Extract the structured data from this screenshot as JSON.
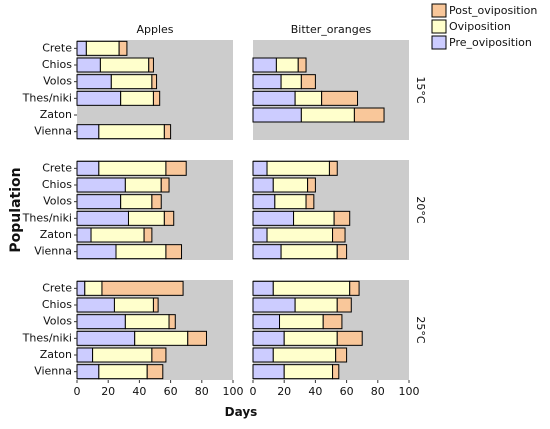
{
  "chart_data": {
    "type": "bar",
    "orientation": "horizontal",
    "stacked": true,
    "xlabel": "Days",
    "ylabel": "Population",
    "xlim": [
      0,
      100
    ],
    "xticks": [
      "0",
      "20",
      "40",
      "60",
      "80",
      "100"
    ],
    "grid": false,
    "legend_position": "top-right",
    "hosts": [
      "Apples",
      "Bitter_oranges"
    ],
    "temperatures": [
      "15°C",
      "20°C",
      "25°C"
    ],
    "populations": [
      "Crete",
      "Chios",
      "Volos",
      "Thes/niki",
      "Zaton",
      "Vienna"
    ],
    "series": [
      {
        "name": "Post_oviposition",
        "color": "#f9c79a"
      },
      {
        "name": "Oviposition",
        "color": "#ffffcc"
      },
      {
        "name": "Pre_oviposition",
        "color": "#ccccff"
      }
    ],
    "panels": [
      {
        "host": "Apples",
        "temperature": "15°C",
        "pre": [
          6,
          15,
          22,
          28,
          null,
          14
        ],
        "ovi": [
          21,
          31,
          26,
          21,
          null,
          42
        ],
        "post": [
          5,
          3,
          3,
          4,
          null,
          4
        ]
      },
      {
        "host": "Bitter_oranges",
        "temperature": "15°C",
        "pre": [
          null,
          15,
          18,
          27,
          31,
          null
        ],
        "ovi": [
          null,
          14,
          13,
          17,
          34,
          null
        ],
        "post": [
          null,
          5,
          9,
          23,
          19,
          null
        ]
      },
      {
        "host": "Apples",
        "temperature": "20°C",
        "pre": [
          14,
          31,
          28,
          33,
          9,
          25
        ],
        "ovi": [
          43,
          23,
          20,
          23,
          34,
          32
        ],
        "post": [
          13,
          5,
          6,
          6,
          5,
          10
        ]
      },
      {
        "host": "Bitter_oranges",
        "temperature": "20°C",
        "pre": [
          9,
          13,
          14,
          26,
          9,
          18
        ],
        "ovi": [
          40,
          22,
          20,
          26,
          42,
          36
        ],
        "post": [
          5,
          5,
          5,
          10,
          8,
          6
        ]
      },
      {
        "host": "Apples",
        "temperature": "25°C",
        "pre": [
          5,
          24,
          31,
          37,
          10,
          14
        ],
        "ovi": [
          11,
          25,
          28,
          34,
          38,
          31
        ],
        "post": [
          52,
          3,
          4,
          12,
          9,
          10
        ]
      },
      {
        "host": "Bitter_oranges",
        "temperature": "25°C",
        "pre": [
          13,
          27,
          17,
          20,
          13,
          20
        ],
        "ovi": [
          49,
          27,
          28,
          34,
          40,
          31
        ],
        "post": [
          6,
          9,
          12,
          16,
          7,
          4
        ]
      }
    ]
  }
}
